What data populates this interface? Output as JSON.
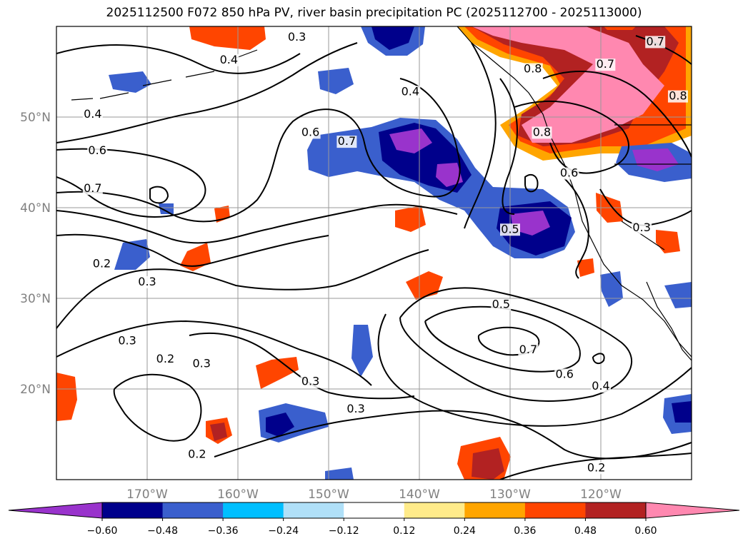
{
  "chart_data": {
    "type": "contour_map",
    "title": "2025112500 F072 850 hPa PV, river basin precipitation PC (2025112700 - 2025113000)",
    "lon_range": [
      -180,
      -110
    ],
    "lat_range": [
      10,
      60
    ],
    "lat_ticks": [
      {
        "value": 50,
        "label": "50°N"
      },
      {
        "value": 40,
        "label": "40°N"
      },
      {
        "value": 30,
        "label": "30°N"
      },
      {
        "value": 20,
        "label": "20°N"
      }
    ],
    "lon_ticks": [
      {
        "value": -170,
        "label": "170°W"
      },
      {
        "value": -160,
        "label": "160°W"
      },
      {
        "value": -150,
        "label": "150°W"
      },
      {
        "value": -140,
        "label": "140°W"
      },
      {
        "value": -130,
        "label": "130°W"
      },
      {
        "value": -120,
        "label": "120°W"
      }
    ],
    "colorbar": {
      "levels": [
        -0.6,
        -0.48,
        -0.36,
        -0.24,
        -0.12,
        0.12,
        0.24,
        0.36,
        0.48,
        0.6
      ],
      "tick_labels": [
        "−0.60",
        "−0.48",
        "−0.36",
        "−0.24",
        "−0.12",
        "0.12",
        "0.24",
        "0.36",
        "0.48",
        "0.60"
      ],
      "colors": [
        "#9933cc",
        "#00008b",
        "#3a5fcd",
        "#00bfff",
        "#b0e0f8",
        "#ffffff",
        "#ffeb8a",
        "#ffa500",
        "#ff4500",
        "#b22222",
        "#ff88b0"
      ]
    },
    "contour_labels": [
      {
        "text": "0.3",
        "lon": -172.2,
        "lat": 25.0
      },
      {
        "text": "0.2",
        "lon": -168.0,
        "lat": 23.0
      },
      {
        "text": "0.3",
        "lon": -164.0,
        "lat": 22.5
      },
      {
        "text": "0.2",
        "lon": -175.0,
        "lat": 33.5
      },
      {
        "text": "0.3",
        "lon": -170.0,
        "lat": 31.5
      },
      {
        "text": "0.7",
        "lon": -176.0,
        "lat": 41.8
      },
      {
        "text": "0.6",
        "lon": -175.5,
        "lat": 46.0
      },
      {
        "text": "0.4",
        "lon": -176.0,
        "lat": 50.0
      },
      {
        "text": "0.4",
        "lon": -161.0,
        "lat": 56.0
      },
      {
        "text": "0.3",
        "lon": -153.5,
        "lat": 58.5
      },
      {
        "text": "0.6",
        "lon": -152.0,
        "lat": 48.0
      },
      {
        "text": "0.7",
        "lon": -148.0,
        "lat": 47.0
      },
      {
        "text": "0.4",
        "lon": -141.0,
        "lat": 52.5
      },
      {
        "text": "0.8",
        "lon": -127.5,
        "lat": 55.0
      },
      {
        "text": "0.7",
        "lon": -119.5,
        "lat": 55.5
      },
      {
        "text": "0.7",
        "lon": -114.0,
        "lat": 58.0
      },
      {
        "text": "0.8",
        "lon": -111.5,
        "lat": 52.0
      },
      {
        "text": "0.8",
        "lon": -126.5,
        "lat": 48.0
      },
      {
        "text": "0.6",
        "lon": -123.5,
        "lat": 43.5
      },
      {
        "text": "0.5",
        "lon": -130.0,
        "lat": 37.3
      },
      {
        "text": "0.3",
        "lon": -115.5,
        "lat": 37.5
      },
      {
        "text": "0.5",
        "lon": -131.0,
        "lat": 29.0
      },
      {
        "text": "0.7",
        "lon": -128.0,
        "lat": 24.0
      },
      {
        "text": "0.6",
        "lon": -124.0,
        "lat": 21.3
      },
      {
        "text": "0.4",
        "lon": -120.0,
        "lat": 20.0
      },
      {
        "text": "0.3",
        "lon": -152.0,
        "lat": 20.5
      },
      {
        "text": "0.3",
        "lon": -147.0,
        "lat": 17.5
      },
      {
        "text": "0.2",
        "lon": -164.5,
        "lat": 12.5
      },
      {
        "text": "0.2",
        "lon": -120.5,
        "lat": 11.0
      }
    ]
  }
}
